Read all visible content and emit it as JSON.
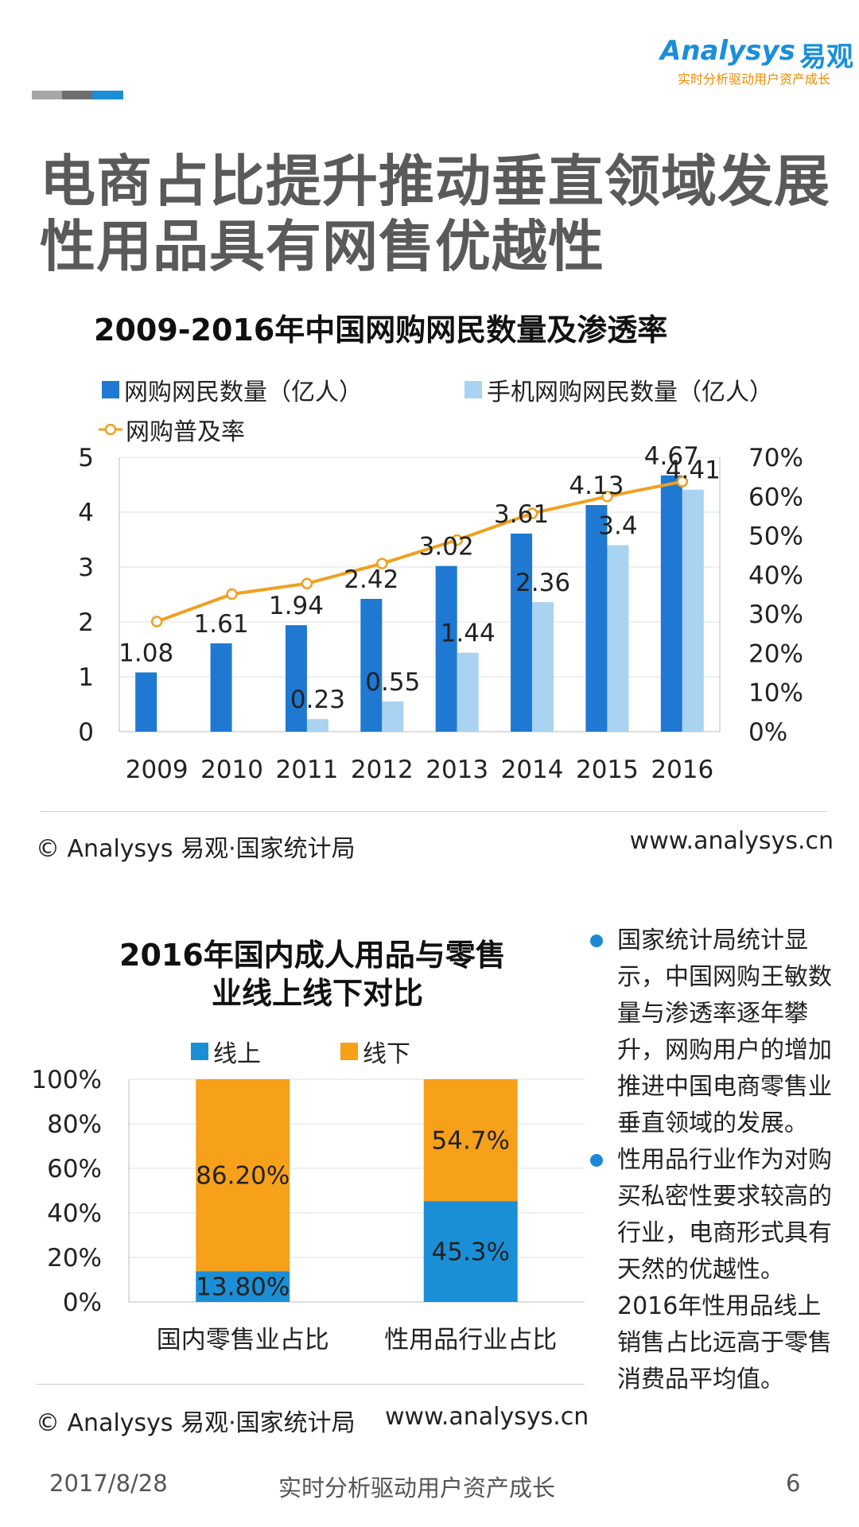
{
  "brand": {
    "logo_word": "Analysys",
    "logo_cn": "易观",
    "tagline": "实时分析驱动用户资产成长",
    "bar_colors": [
      "#a6a6a6",
      "#6e6e6e",
      "#1a8fd8"
    ]
  },
  "title": {
    "line1": "电商占比提升推动垂直领域发展",
    "line2": "性用品具有网售优越性"
  },
  "chart1": {
    "title": "2009-2016年中国网购网民数量及渗透率",
    "source": "© Analysys 易观·国家统计局",
    "url": "www.analysys.cn"
  },
  "chart2": {
    "title_line1": "2016年国内成人用品与零售",
    "title_line2": "业线上线下对比",
    "source": "© Analysys 易观·国家统计局",
    "url": "www.analysys.cn"
  },
  "chart_data": [
    {
      "type": "bar",
      "title": "2009-2016年中国网购网民数量及渗透率",
      "categories": [
        "2009",
        "2010",
        "2011",
        "2012",
        "2013",
        "2014",
        "2015",
        "2016"
      ],
      "series": [
        {
          "name": "网购网民数量（亿人）",
          "axis": "left",
          "color": "#1f78d1",
          "values": [
            1.08,
            1.61,
            1.94,
            2.42,
            3.02,
            3.61,
            4.13,
            4.67
          ],
          "labels": [
            "1.08",
            "1.61",
            "1.94",
            "2.42",
            "3.02",
            "3.61",
            "4.13",
            "4.67"
          ]
        },
        {
          "name": "手机网购网民数量（亿人）",
          "axis": "left",
          "color": "#a9d3f0",
          "values": [
            null,
            null,
            0.23,
            0.55,
            1.44,
            2.36,
            3.4,
            4.41
          ],
          "labels": [
            "",
            "",
            "0.23",
            "0.55",
            "1.44",
            "2.36",
            "3.4",
            "4.41"
          ]
        },
        {
          "name": "网购普及率",
          "axis": "right",
          "type": "line",
          "color": "#f0a020",
          "values": [
            28.1,
            35.1,
            37.8,
            42.9,
            48.9,
            55.7,
            60.0,
            63.8
          ]
        }
      ],
      "ylim": [
        0,
        5
      ],
      "yticks": [
        "0",
        "1",
        "2",
        "3",
        "4",
        "5"
      ],
      "y2lim": [
        0,
        70
      ],
      "y2ticks": [
        "0%",
        "10%",
        "20%",
        "30%",
        "40%",
        "50%",
        "60%",
        "70%"
      ],
      "legend": "top"
    },
    {
      "type": "bar",
      "stacked": true,
      "title": "2016年国内成人用品与零售业线上线下对比",
      "categories": [
        "国内零售业占比",
        "性用品行业占比"
      ],
      "series": [
        {
          "name": "线上",
          "color": "#1b8fd6",
          "values": [
            13.8,
            45.3
          ],
          "labels": [
            "13.80%",
            "45.3%"
          ]
        },
        {
          "name": "线下",
          "color": "#f7a01a",
          "values": [
            86.2,
            54.7
          ],
          "labels": [
            "86.20%",
            "54.7%"
          ]
        }
      ],
      "ylim": [
        0,
        100
      ],
      "yticks": [
        "0%",
        "20%",
        "40%",
        "60%",
        "80%",
        "100%"
      ],
      "legend": "top"
    }
  ],
  "side_text": {
    "bullet1": "国家统计局统计显示，中国网购王敏数量与渗透率逐年攀升，网购用户的增加推进中国电商零售业垂直领域的发展。",
    "bullet2": "性用品行业作为对购买私密性要求较高的行业，电商形式具有天然的优越性。2016年性用品线上销售占比远高于零售消费品平均值。"
  },
  "footer": {
    "date": "2017/8/28",
    "slogan": "实时分析驱动用户资产成长",
    "page": "6"
  }
}
